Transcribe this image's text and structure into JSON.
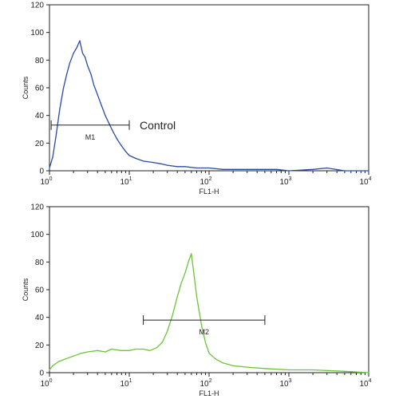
{
  "chart_data": [
    {
      "type": "line",
      "panel": "top",
      "title": "",
      "xlabel": "FL1-H",
      "ylabel": "Counts",
      "xscale": "log",
      "xlim": [
        1,
        10000
      ],
      "ylim": [
        0,
        120
      ],
      "y_ticks": [
        "0",
        "20",
        "40",
        "60",
        "80",
        "100",
        "120"
      ],
      "x_ticks": [
        {
          "base": "10",
          "exp": "0"
        },
        {
          "base": "10",
          "exp": "1"
        },
        {
          "base": "10",
          "exp": "2"
        },
        {
          "base": "10",
          "exp": "3"
        },
        {
          "base": "10",
          "exp": "4"
        }
      ],
      "grid": false,
      "color": "#2a4aa6",
      "series": [
        {
          "x": [
            1.0,
            1.1,
            1.2,
            1.35,
            1.5,
            1.65,
            1.8,
            2.0,
            2.2,
            2.4,
            2.6,
            2.8,
            3.0,
            3.3,
            3.6,
            4.0,
            4.5,
            5.0,
            5.6,
            6.3,
            7.0,
            8.0,
            9.0,
            10,
            12,
            15,
            20,
            25,
            30,
            40,
            50,
            70,
            100,
            150,
            200,
            300,
            500,
            700,
            1000,
            2000,
            3000,
            5000,
            10000
          ],
          "values": [
            2,
            10,
            24,
            45,
            60,
            70,
            78,
            85,
            89,
            94,
            85,
            82,
            76,
            70,
            62,
            55,
            47,
            40,
            34,
            28,
            23,
            18,
            14,
            11,
            9,
            7,
            6,
            5,
            4,
            3,
            3,
            2,
            2,
            1,
            1,
            1,
            1,
            1,
            0,
            1,
            2,
            0,
            0
          ]
        }
      ],
      "gate": {
        "label": "M1",
        "from": 1.05,
        "to": 10,
        "y": 33
      },
      "annotation": "Control"
    },
    {
      "type": "line",
      "panel": "bottom",
      "title": "",
      "xlabel": "FL1-H",
      "ylabel": "Counts",
      "xscale": "log",
      "xlim": [
        1,
        10000
      ],
      "ylim": [
        0,
        120
      ],
      "y_ticks": [
        "0",
        "20",
        "40",
        "60",
        "80",
        "100",
        "120"
      ],
      "x_ticks": [
        {
          "base": "10",
          "exp": "0"
        },
        {
          "base": "10",
          "exp": "1"
        },
        {
          "base": "10",
          "exp": "2"
        },
        {
          "base": "10",
          "exp": "3"
        },
        {
          "base": "10",
          "exp": "4"
        }
      ],
      "grid": false,
      "color": "#6cc43a",
      "series": [
        {
          "x": [
            1.0,
            1.1,
            1.3,
            1.6,
            2.0,
            2.5,
            3.0,
            4.0,
            5.0,
            6.0,
            8.0,
            10,
            12,
            15,
            18,
            22,
            26,
            30,
            35,
            40,
            45,
            50,
            55,
            60,
            65,
            70,
            80,
            90,
            100,
            120,
            150,
            200,
            300,
            500,
            1000,
            2000,
            5000,
            10000
          ],
          "values": [
            2,
            5,
            8,
            10,
            12,
            14,
            15,
            16,
            15,
            17,
            16,
            16,
            17,
            17,
            16,
            18,
            22,
            30,
            42,
            55,
            65,
            72,
            80,
            86,
            70,
            55,
            35,
            22,
            14,
            10,
            7,
            5,
            4,
            3,
            2,
            2,
            1,
            0
          ]
        }
      ],
      "gate": {
        "label": "M2",
        "from": 15,
        "to": 500,
        "y": 38
      }
    }
  ]
}
